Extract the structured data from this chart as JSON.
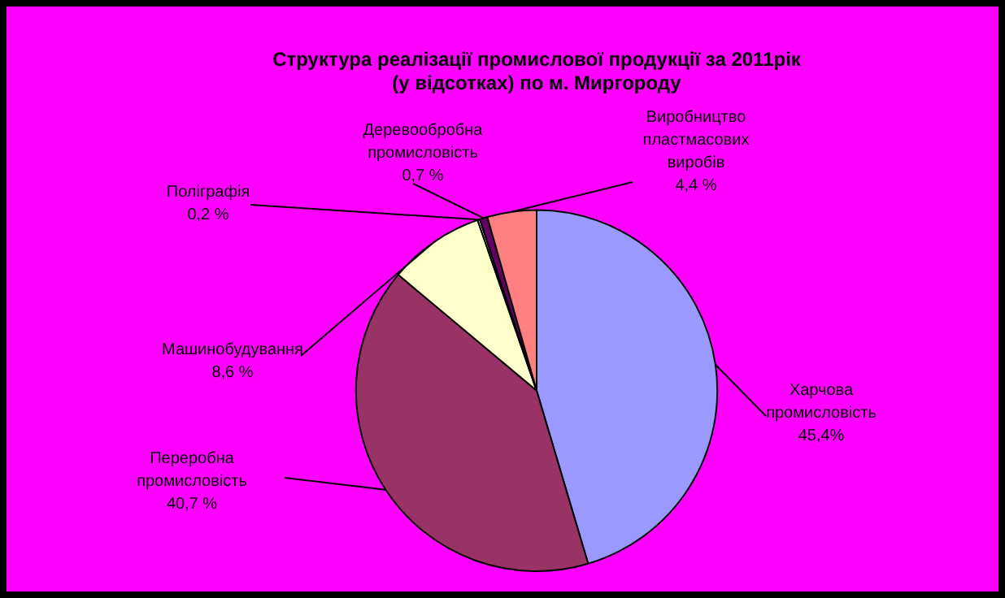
{
  "chart_data": {
    "type": "pie",
    "title": "Структура реалізації промислової продукції за 2011рік (у відсотках) по м. Миргороду",
    "categories": [
      "Харчова промисловість",
      "Переробна промисловість",
      "Машинобудування",
      "Поліграфія",
      "Деревообробна промисловість",
      "Виробництво пластмасових виробів"
    ],
    "values": [
      45.4,
      40.7,
      8.6,
      0.2,
      0.7,
      4.4
    ],
    "value_labels": [
      "45,4%",
      "40,7 %",
      "8,6 %",
      "0,2 %",
      "0,7 %",
      "4,4 %"
    ],
    "colors": [
      "#9999ff",
      "#993366",
      "#ffffcc",
      "#ffffff",
      "#660066",
      "#ff8080"
    ],
    "legend": false
  }
}
